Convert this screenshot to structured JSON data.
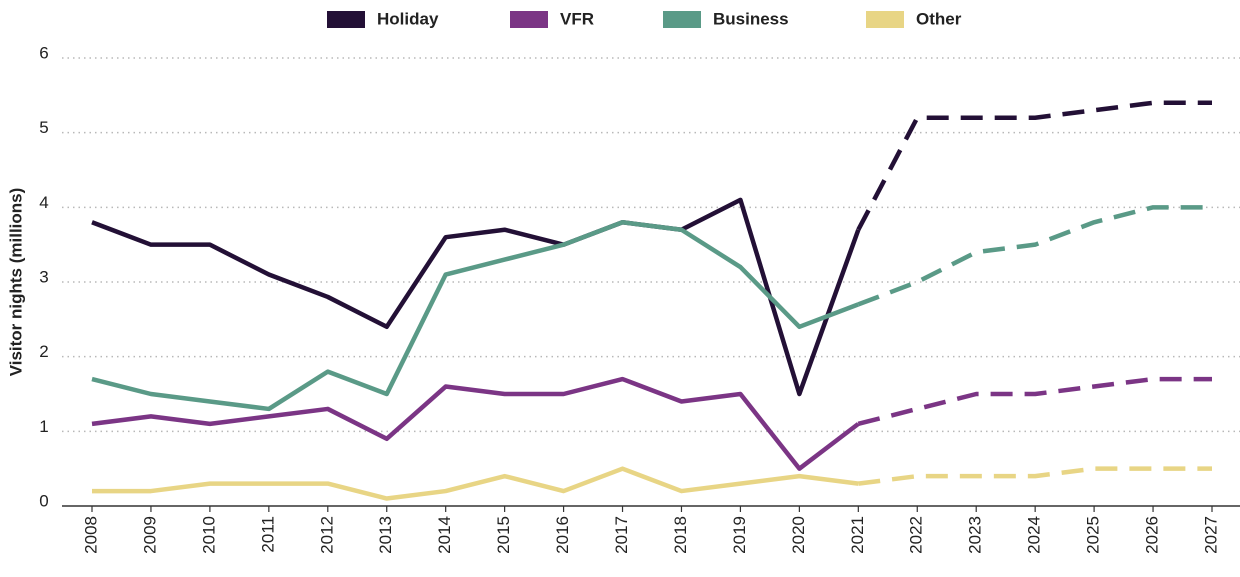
{
  "chart_data": {
    "type": "line",
    "y_label": "Visitor nights (millions)",
    "categories": [
      "2008",
      "2009",
      "2010",
      "2011",
      "2012",
      "2013",
      "2014",
      "2015",
      "2016",
      "2017",
      "2018",
      "2019",
      "2020",
      "2021",
      "2022",
      "2023",
      "2024",
      "2025",
      "2026",
      "2027"
    ],
    "forecast_start": "2021",
    "series": [
      {
        "name": "Holiday",
        "color": "#231036",
        "values": [
          3.8,
          3.5,
          3.5,
          3.1,
          2.8,
          2.4,
          3.6,
          3.7,
          3.5,
          3.8,
          3.7,
          4.1,
          1.5,
          3.7,
          5.2,
          5.2,
          5.2,
          5.3,
          5.4,
          5.4
        ]
      },
      {
        "name": "VFR",
        "color": "#7b3585",
        "values": [
          1.1,
          1.2,
          1.1,
          1.2,
          1.3,
          0.9,
          1.6,
          1.5,
          1.5,
          1.7,
          1.4,
          1.5,
          0.5,
          1.1,
          1.3,
          1.5,
          1.5,
          1.6,
          1.7,
          1.7
        ]
      },
      {
        "name": "Business",
        "color": "#5a9a87",
        "values": [
          1.7,
          1.5,
          1.4,
          1.3,
          1.8,
          1.5,
          3.1,
          3.3,
          3.5,
          3.8,
          3.7,
          3.2,
          2.4,
          2.7,
          3.0,
          3.4,
          3.5,
          3.8,
          4.0,
          4.0
        ]
      },
      {
        "name": "Other",
        "color": "#e8d585",
        "values": [
          0.2,
          0.2,
          0.3,
          0.3,
          0.3,
          0.1,
          0.2,
          0.4,
          0.2,
          0.5,
          0.2,
          0.3,
          0.4,
          0.3,
          0.4,
          0.4,
          0.4,
          0.5,
          0.5,
          0.5
        ]
      }
    ],
    "ylim": [
      0,
      6
    ],
    "yticks": [
      0,
      1,
      2,
      3,
      4,
      5,
      6
    ],
    "grid": true,
    "legend": "top"
  }
}
